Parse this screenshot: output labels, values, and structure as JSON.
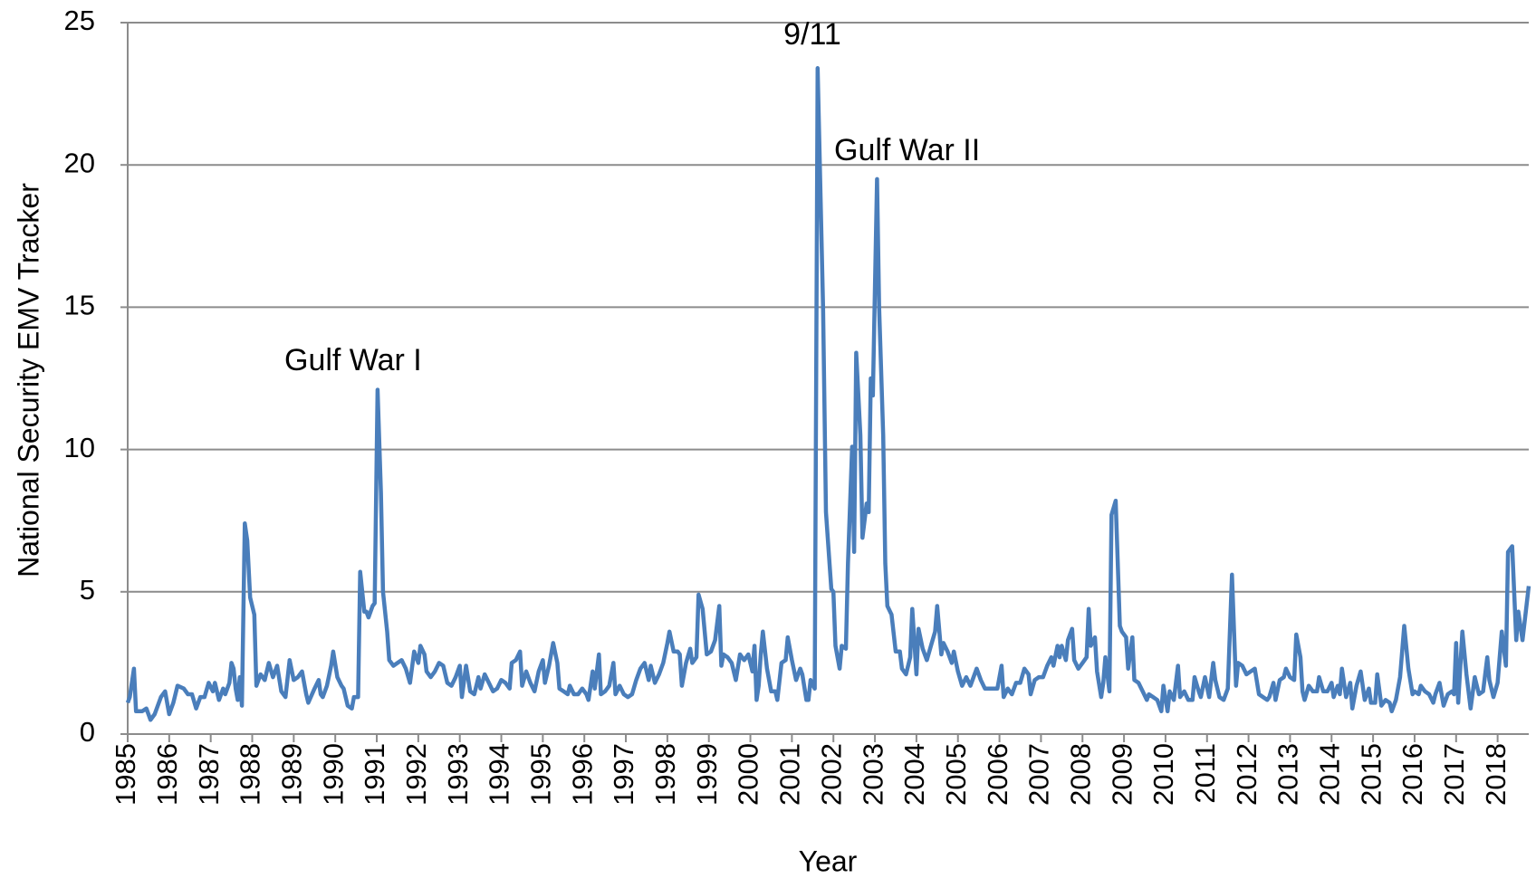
{
  "chart_data": {
    "type": "line",
    "y_label": "National Security EMV Tracker",
    "x_label": "Year",
    "annotations": [
      "Gulf War I",
      "9/11",
      "Gulf War II"
    ],
    "color": "#4a7ebb",
    "grid": true,
    "xlim": [
      1985,
      2018.75
    ],
    "xticks": [
      1985,
      1986,
      1987,
      1988,
      1989,
      1990,
      1991,
      1992,
      1993,
      1994,
      1995,
      1996,
      1997,
      1998,
      1999,
      2000,
      2001,
      2002,
      2003,
      2004,
      2005,
      2006,
      2007,
      2008,
      2009,
      2010,
      2011,
      2012,
      2013,
      2014,
      2015,
      2016,
      2017,
      2018
    ],
    "ylim": [
      0,
      25
    ],
    "yticks": [
      0,
      5,
      10,
      15,
      20,
      25
    ],
    "x": [
      1985.0,
      1985.05,
      1985.15,
      1985.2,
      1985.35,
      1985.45,
      1985.55,
      1985.65,
      1985.8,
      1985.9,
      1986.0,
      1986.1,
      1986.2,
      1986.35,
      1986.45,
      1986.55,
      1986.65,
      1986.75,
      1986.85,
      1986.95,
      1987.05,
      1987.1,
      1987.2,
      1987.3,
      1987.35,
      1987.45,
      1987.5,
      1987.55,
      1987.6,
      1987.65,
      1987.7,
      1987.75,
      1987.82,
      1987.88,
      1987.95,
      1988.05,
      1988.1,
      1988.2,
      1988.3,
      1988.4,
      1988.5,
      1988.6,
      1988.7,
      1988.8,
      1988.9,
      1989.0,
      1989.1,
      1989.2,
      1989.3,
      1989.35,
      1989.5,
      1989.6,
      1989.65,
      1989.7,
      1989.8,
      1989.9,
      1989.95,
      1990.05,
      1990.15,
      1990.2,
      1990.3,
      1990.4,
      1990.45,
      1990.55,
      1990.6,
      1990.7,
      1990.75,
      1990.8,
      1990.9,
      1990.95,
      1991.02,
      1991.1,
      1991.15,
      1991.25,
      1991.3,
      1991.4,
      1991.5,
      1991.6,
      1991.7,
      1991.8,
      1991.9,
      1992.0,
      1992.05,
      1992.15,
      1992.2,
      1992.3,
      1992.4,
      1992.5,
      1992.6,
      1992.7,
      1992.8,
      1992.9,
      1993.0,
      1993.05,
      1993.15,
      1993.25,
      1993.35,
      1993.45,
      1993.5,
      1993.6,
      1993.7,
      1993.8,
      1993.9,
      1994.0,
      1994.1,
      1994.2,
      1994.25,
      1994.35,
      1994.45,
      1994.5,
      1994.6,
      1994.7,
      1994.8,
      1994.9,
      1995.0,
      1995.05,
      1995.15,
      1995.25,
      1995.35,
      1995.4,
      1995.5,
      1995.6,
      1995.65,
      1995.75,
      1995.85,
      1995.95,
      1996.05,
      1996.1,
      1996.2,
      1996.25,
      1996.35,
      1996.4,
      1996.5,
      1996.6,
      1996.7,
      1996.75,
      1996.85,
      1996.95,
      1997.05,
      1997.15,
      1997.25,
      1997.35,
      1997.45,
      1997.55,
      1997.6,
      1997.7,
      1997.8,
      1997.9,
      1998.0,
      1998.05,
      1998.15,
      1998.25,
      1998.3,
      1998.35,
      1998.45,
      1998.55,
      1998.6,
      1998.7,
      1998.75,
      1998.85,
      1998.95,
      1999.05,
      1999.15,
      1999.25,
      1999.3,
      1999.35,
      1999.45,
      1999.55,
      1999.65,
      1999.75,
      1999.85,
      1999.95,
      2000.05,
      2000.1,
      2000.15,
      2000.2,
      2000.25,
      2000.3,
      2000.4,
      2000.5,
      2000.6,
      2000.65,
      2000.75,
      2000.85,
      2000.9,
      2001.0,
      2001.1,
      2001.2,
      2001.25,
      2001.35,
      2001.4,
      2001.45,
      2001.55,
      2001.62,
      2001.75,
      2001.82,
      2001.95,
      2002.0,
      2002.05,
      2002.15,
      2002.2,
      2002.3,
      2002.35,
      2002.45,
      2002.5,
      2002.55,
      2002.65,
      2002.7,
      2002.8,
      2002.85,
      2002.9,
      2002.95,
      2003.05,
      2003.1,
      2003.2,
      2003.25,
      2003.3,
      2003.4,
      2003.5,
      2003.6,
      2003.65,
      2003.75,
      2003.85,
      2003.9,
      2004.0,
      2004.05,
      2004.15,
      2004.25,
      2004.35,
      2004.45,
      2004.5,
      2004.6,
      2004.65,
      2004.75,
      2004.85,
      2004.9,
      2005.0,
      2005.1,
      2005.2,
      2005.3,
      2005.35,
      2005.45,
      2005.55,
      2005.65,
      2005.75,
      2005.85,
      2005.95,
      2006.05,
      2006.1,
      2006.2,
      2006.3,
      2006.4,
      2006.5,
      2006.6,
      2006.7,
      2006.75,
      2006.85,
      2006.95,
      2007.05,
      2007.15,
      2007.25,
      2007.3,
      2007.4,
      2007.45,
      2007.5,
      2007.6,
      2007.65,
      2007.75,
      2007.8,
      2007.9,
      2008.0,
      2008.1,
      2008.15,
      2008.2,
      2008.3,
      2008.35,
      2008.45,
      2008.5,
      2008.55,
      2008.65,
      2008.7,
      2008.8,
      2008.9,
      2008.95,
      2009.05,
      2009.1,
      2009.2,
      2009.25,
      2009.35,
      2009.45,
      2009.55,
      2009.6,
      2009.7,
      2009.8,
      2009.9,
      2009.95,
      2010.05,
      2010.1,
      2010.2,
      2010.3,
      2010.35,
      2010.45,
      2010.55,
      2010.65,
      2010.7,
      2010.8,
      2010.85,
      2010.95,
      2011.05,
      2011.15,
      2011.2,
      2011.3,
      2011.4,
      2011.5,
      2011.6,
      2011.7,
      2011.75,
      2011.85,
      2011.95,
      2012.05,
      2012.15,
      2012.25,
      2012.35,
      2012.45,
      2012.5,
      2012.6,
      2012.65,
      2012.75,
      2012.85,
      2012.9,
      2013.0,
      2013.1,
      2013.15,
      2013.25,
      2013.3,
      2013.35,
      2013.45,
      2013.55,
      2013.65,
      2013.7,
      2013.8,
      2013.9,
      2014.0,
      2014.05,
      2014.15,
      2014.2,
      2014.25,
      2014.35,
      2014.45,
      2014.5,
      2014.6,
      2014.7,
      2014.8,
      2014.9,
      2014.95,
      2015.05,
      2015.1,
      2015.2,
      2015.3,
      2015.4,
      2015.45,
      2015.55,
      2015.65,
      2015.75,
      2015.85,
      2015.95,
      2016.0,
      2016.1,
      2016.15,
      2016.25,
      2016.35,
      2016.45,
      2016.5,
      2016.6,
      2016.7,
      2016.8,
      2016.9,
      2016.95,
      2017.0,
      2017.05,
      2017.15,
      2017.25,
      2017.35,
      2017.45,
      2017.55,
      2017.65,
      2017.75,
      2017.8,
      2017.9,
      2018.0,
      2018.1,
      2018.2,
      2018.25,
      2018.35,
      2018.45,
      2018.5,
      2018.6,
      2018.75
    ],
    "values": [
      1.1,
      1.3,
      2.3,
      0.8,
      0.8,
      0.9,
      0.5,
      0.7,
      1.3,
      1.5,
      0.7,
      1.1,
      1.7,
      1.6,
      1.4,
      1.4,
      0.9,
      1.3,
      1.3,
      1.8,
      1.5,
      1.8,
      1.2,
      1.6,
      1.4,
      1.8,
      2.5,
      2.3,
      1.6,
      1.2,
      2.0,
      1.0,
      7.4,
      6.8,
      4.8,
      4.2,
      1.7,
      2.1,
      1.9,
      2.5,
      2.0,
      2.4,
      1.5,
      1.3,
      2.6,
      1.9,
      2.0,
      2.2,
      1.4,
      1.1,
      1.6,
      1.9,
      1.4,
      1.3,
      1.7,
      2.4,
      2.9,
      2.0,
      1.7,
      1.6,
      1.0,
      0.9,
      1.3,
      1.3,
      5.7,
      4.3,
      4.3,
      4.1,
      4.5,
      4.6,
      12.1,
      8.5,
      5.0,
      3.6,
      2.6,
      2.4,
      2.5,
      2.6,
      2.3,
      1.8,
      2.9,
      2.5,
      3.1,
      2.8,
      2.2,
      2.0,
      2.2,
      2.5,
      2.4,
      1.8,
      1.7,
      2.0,
      2.4,
      1.3,
      2.4,
      1.5,
      1.4,
      2.0,
      1.6,
      2.1,
      1.8,
      1.5,
      1.6,
      1.9,
      1.8,
      1.6,
      2.5,
      2.6,
      2.9,
      1.7,
      2.2,
      1.8,
      1.5,
      2.2,
      2.6,
      1.8,
      2.4,
      3.2,
      2.5,
      1.6,
      1.5,
      1.4,
      1.7,
      1.4,
      1.4,
      1.6,
      1.4,
      1.2,
      2.2,
      1.6,
      2.8,
      1.4,
      1.5,
      1.7,
      2.5,
      1.4,
      1.7,
      1.4,
      1.3,
      1.4,
      1.9,
      2.3,
      2.5,
      1.9,
      2.4,
      1.8,
      2.1,
      2.5,
      3.2,
      3.6,
      2.9,
      2.9,
      2.8,
      1.7,
      2.5,
      3.0,
      2.5,
      2.7,
      4.9,
      4.4,
      2.8,
      2.9,
      3.3,
      4.5,
      2.4,
      2.8,
      2.7,
      2.5,
      1.9,
      2.8,
      2.6,
      2.8,
      2.2,
      3.1,
      1.2,
      1.7,
      2.8,
      3.6,
      2.3,
      1.5,
      1.5,
      1.2,
      2.5,
      2.6,
      3.4,
      2.6,
      1.9,
      2.3,
      2.1,
      1.2,
      1.2,
      1.9,
      1.6,
      23.4,
      15.0,
      7.8,
      5.1,
      5.0,
      3.1,
      2.3,
      3.1,
      3.0,
      6.0,
      10.1,
      6.4,
      13.4,
      10.5,
      6.9,
      8.1,
      7.8,
      12.5,
      11.9,
      19.5,
      15.0,
      10.5,
      6.0,
      4.5,
      4.2,
      2.9,
      2.9,
      2.3,
      2.1,
      2.7,
      4.4,
      2.1,
      3.7,
      3.0,
      2.6,
      3.1,
      3.6,
      4.5,
      2.8,
      3.2,
      2.9,
      2.5,
      2.9,
      2.2,
      1.7,
      2.0,
      1.7,
      1.9,
      2.3,
      1.9,
      1.6,
      1.6,
      1.6,
      1.6,
      2.4,
      1.3,
      1.6,
      1.4,
      1.8,
      1.8,
      2.3,
      2.1,
      1.4,
      1.9,
      2.0,
      2.0,
      2.4,
      2.7,
      2.4,
      3.1,
      2.7,
      3.1,
      2.6,
      3.3,
      3.7,
      2.6,
      2.3,
      2.5,
      2.7,
      4.4,
      3.1,
      3.4,
      2.2,
      1.3,
      1.8,
      2.7,
      1.5,
      7.7,
      8.2,
      3.8,
      3.6,
      3.4,
      2.3,
      3.4,
      1.9,
      1.8,
      1.5,
      1.2,
      1.4,
      1.3,
      1.2,
      0.8,
      1.7,
      0.8,
      1.5,
      1.2,
      2.4,
      1.3,
      1.5,
      1.2,
      1.2,
      2.0,
      1.5,
      1.3,
      2.0,
      1.3,
      2.5,
      1.9,
      1.3,
      1.2,
      1.6,
      5.6,
      1.7,
      2.5,
      2.4,
      2.1,
      2.2,
      2.3,
      1.4,
      1.3,
      1.2,
      1.3,
      1.8,
      1.2,
      1.9,
      2.0,
      2.3,
      2.0,
      1.9,
      3.5,
      2.7,
      1.5,
      1.2,
      1.7,
      1.5,
      1.5,
      2.0,
      1.5,
      1.5,
      1.8,
      1.3,
      1.7,
      1.4,
      2.3,
      1.3,
      1.8,
      0.9,
      1.7,
      2.2,
      1.2,
      1.6,
      1.1,
      1.1,
      2.1,
      1.0,
      1.2,
      1.1,
      0.8,
      1.2,
      2.0,
      3.8,
      2.3,
      1.4,
      1.5,
      1.4,
      1.7,
      1.5,
      1.4,
      1.1,
      1.4,
      1.8,
      1.0,
      1.4,
      1.5,
      1.4,
      3.2,
      1.1,
      3.6,
      2.1,
      0.9,
      2.0,
      1.4,
      1.5,
      2.7,
      1.9,
      1.3,
      1.8,
      3.6,
      2.4,
      6.4,
      6.6,
      3.3,
      4.3,
      3.3,
      5.2
    ]
  }
}
